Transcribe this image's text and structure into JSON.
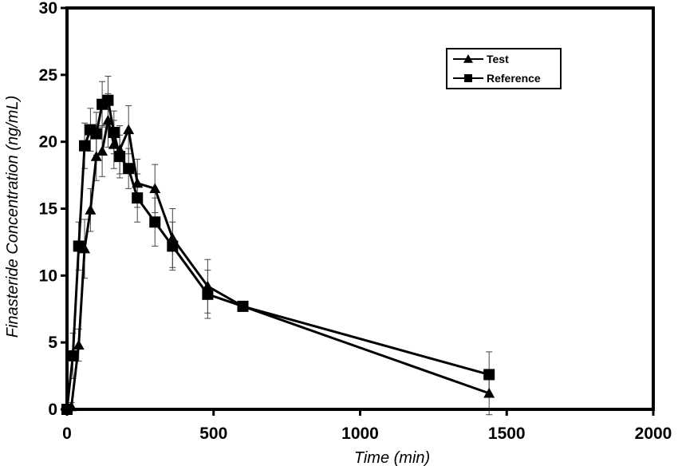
{
  "chart_data": {
    "type": "line",
    "title": "",
    "xlabel": "Time (min)",
    "ylabel": "Finasteride Concentration (ng/mL)",
    "xlim": [
      0,
      2000
    ],
    "ylim": [
      0,
      30
    ],
    "xticks": [
      0,
      500,
      1000,
      1500,
      2000
    ],
    "yticks": [
      0,
      5,
      10,
      15,
      20,
      25,
      30
    ],
    "grid": false,
    "legend_position": "top-right",
    "series": [
      {
        "name": "Test",
        "marker": "triangle",
        "x": [
          0,
          15,
          40,
          60,
          80,
          100,
          120,
          140,
          160,
          180,
          210,
          240,
          300,
          360,
          480,
          600,
          1440
        ],
        "y": [
          0,
          0.2,
          4.8,
          12.0,
          14.9,
          18.9,
          19.3,
          21.6,
          19.8,
          19.4,
          20.9,
          16.9,
          16.5,
          12.8,
          9.2,
          7.7,
          1.2
        ],
        "error": [
          0,
          0.3,
          1.2,
          2.2,
          1.6,
          1.8,
          1.9,
          2.0,
          1.8,
          1.8,
          1.8,
          1.8,
          1.8,
          2.2,
          2.0,
          0,
          1.6
        ]
      },
      {
        "name": "Reference",
        "marker": "square",
        "x": [
          0,
          20,
          40,
          60,
          80,
          100,
          120,
          140,
          160,
          180,
          210,
          240,
          300,
          360,
          480,
          600,
          1440
        ],
        "y": [
          0,
          4.0,
          12.2,
          19.7,
          20.9,
          20.6,
          22.8,
          23.1,
          20.7,
          18.9,
          18.0,
          15.8,
          14.0,
          12.2,
          8.6,
          7.7,
          2.6
        ],
        "error": [
          0,
          1.7,
          1.8,
          1.7,
          1.6,
          1.6,
          1.7,
          1.8,
          1.6,
          1.6,
          1.5,
          1.8,
          1.8,
          1.8,
          1.8,
          0,
          1.7
        ]
      }
    ]
  }
}
